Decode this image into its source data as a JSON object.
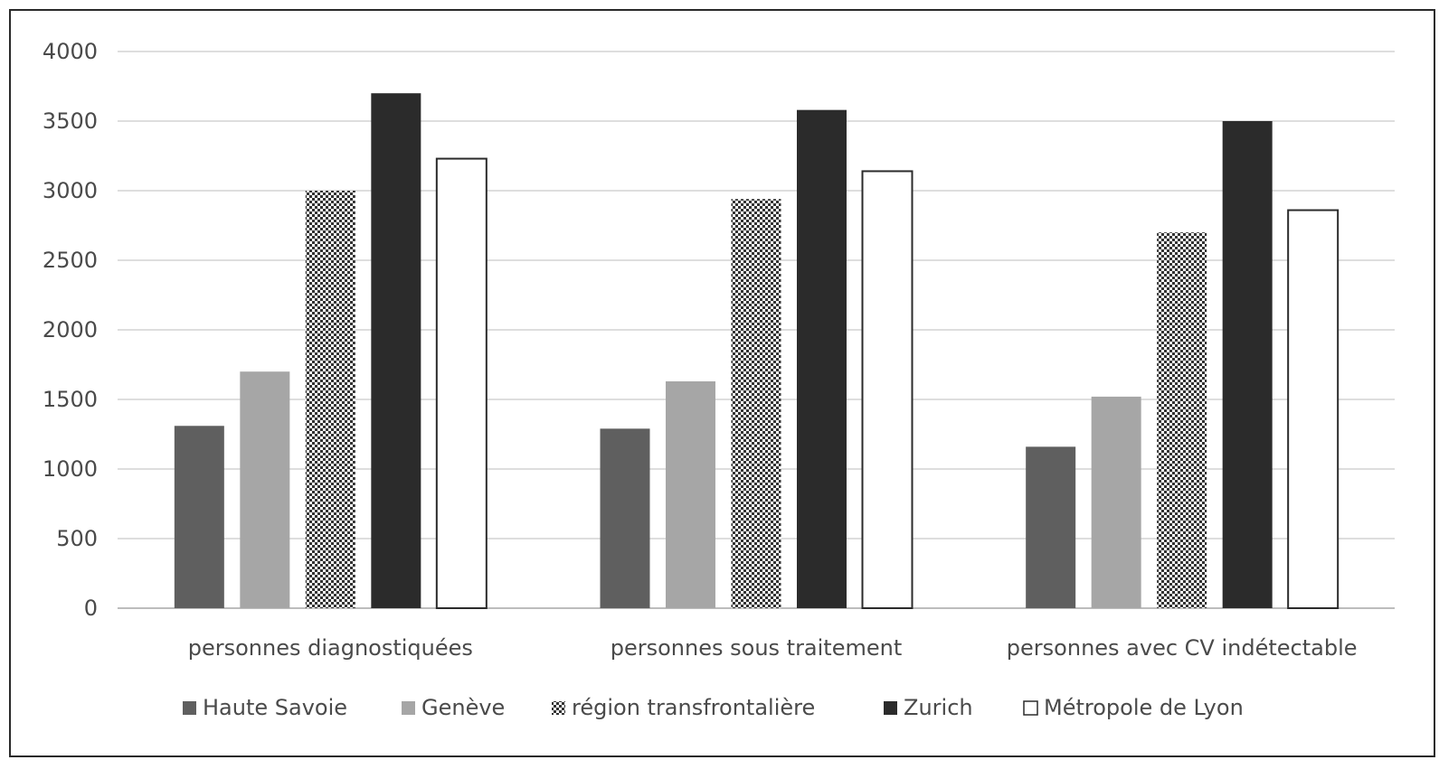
{
  "chart_data": {
    "type": "bar",
    "title": "",
    "xlabel": "",
    "ylabel": "",
    "ylim": [
      0,
      4000
    ],
    "yticks": [
      0,
      500,
      1000,
      1500,
      2000,
      2500,
      3000,
      3500,
      4000
    ],
    "grid": true,
    "legend_position": "bottom",
    "categories": [
      "personnes diagnostiquées",
      "personnes sous traitement",
      "personnes avec CV indétectable"
    ],
    "series": [
      {
        "name": "Haute Savoie",
        "values": [
          1310,
          1290,
          1160
        ],
        "color": "#5f5f5f",
        "fill_style": "solid"
      },
      {
        "name": "Genève",
        "values": [
          1700,
          1630,
          1520
        ],
        "color": "#a6a6a6",
        "fill_style": "solid"
      },
      {
        "name": "région transfrontalière",
        "values": [
          3000,
          2940,
          2700
        ],
        "color": "#333333",
        "fill_style": "checker"
      },
      {
        "name": "Zurich",
        "values": [
          3700,
          3580,
          3500
        ],
        "color": "#2b2b2b",
        "fill_style": "solid"
      },
      {
        "name": "Métropole de Lyon",
        "values": [
          3230,
          3140,
          2860
        ],
        "color": "#ffffff",
        "fill_style": "outline"
      }
    ]
  }
}
